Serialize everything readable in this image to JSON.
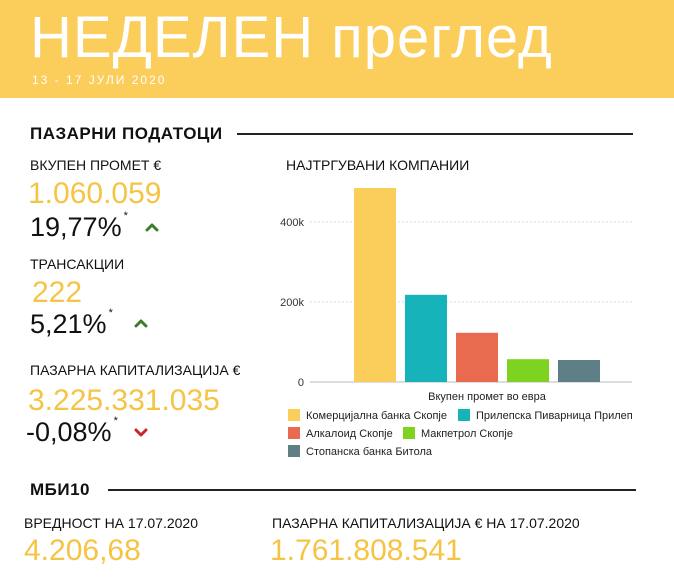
{
  "header": {
    "title": "НЕДЕЛЕН преглед",
    "date_range": "13 - 17 ЈУЛИ 2020"
  },
  "market_data": {
    "section_title": "ПАЗАРНИ ПОДАТОЦИ",
    "turnover": {
      "label": "ВКУПЕН ПРОМЕТ €",
      "value": "1.060.059",
      "change": "19,77%",
      "asterisk": "*",
      "direction": "up"
    },
    "transactions": {
      "label": "ТРАНСАКЦИИ",
      "value": "222",
      "change": "5,21%",
      "asterisk": "*",
      "direction": "up"
    },
    "market_cap": {
      "label": "ПАЗАРНА КАПИТАЛИЗАЦИЈА €",
      "value": "3.225.331.035",
      "change": "-0,08%",
      "asterisk": "*",
      "direction": "down"
    }
  },
  "chart_title": "НАЈТРГУВАНИ КОМПАНИИ",
  "chart_data": {
    "type": "bar",
    "title": "НАЈТРГУВАНИ КОМПАНИИ",
    "xlabel": "Вкупен промет во евра",
    "ylabel": "",
    "ylim": [
      0,
      500000
    ],
    "yticks": [
      "0",
      "200k",
      "400k"
    ],
    "ytick_values": [
      0,
      200000,
      400000
    ],
    "grid": true,
    "legend_position": "bottom",
    "series": [
      {
        "name": "Комерцијална банка Скопје",
        "value": 485000,
        "color": "#fbcd5b"
      },
      {
        "name": "Прилепска Пиварница Прилеп",
        "value": 218000,
        "color": "#16b3ba"
      },
      {
        "name": "Алкалоид Скопје",
        "value": 123000,
        "color": "#e86b4f"
      },
      {
        "name": "Макпетрол Скопје",
        "value": 57000,
        "color": "#7ed321"
      },
      {
        "name": "Стопанска банка Битола",
        "value": 55000,
        "color": "#5e7f86"
      }
    ]
  },
  "mbi10": {
    "section_title": "МБИ10",
    "value_label": "ВРЕДНОСТ НА 17.07.2020",
    "value": "4.206,68",
    "cap_label": "ПАЗАРНА КАПИТАЛИЗАЦИЈА € НА 17.07.2020",
    "cap_value": "1.761.808.541"
  },
  "colors": {
    "accent": "#fbcd5b",
    "value_text": "#f6c445",
    "up": "#3a7d2c",
    "down": "#c62828"
  }
}
